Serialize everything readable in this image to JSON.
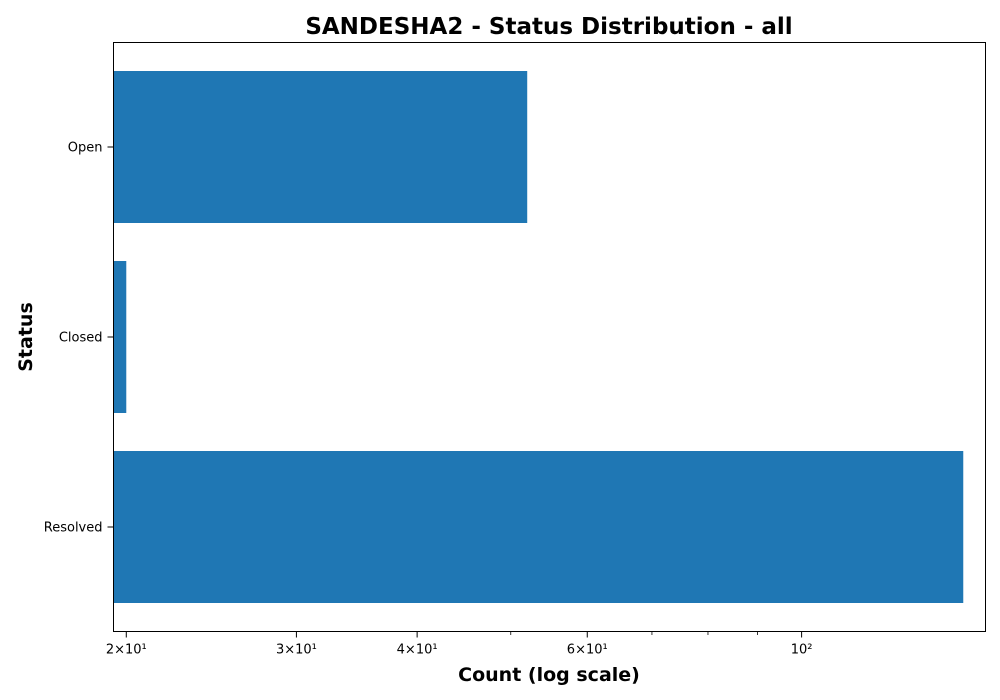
{
  "chart_data": {
    "type": "bar",
    "orientation": "horizontal",
    "title": "SANDESHA2 - Status Distribution - all",
    "xlabel": "Count (log scale)",
    "ylabel": "Status",
    "x_scale": "log",
    "xlim": [
      19.4,
      155
    ],
    "categories": [
      "Open",
      "Closed",
      "Resolved"
    ],
    "values": [
      52,
      20,
      147
    ],
    "bar_color": "#1f77b4",
    "x_major_ticks": [
      {
        "value": 20,
        "label": "2×10¹"
      },
      {
        "value": 30,
        "label": "3×10¹"
      },
      {
        "value": 40,
        "label": "4×10¹"
      },
      {
        "value": 60,
        "label": "6×10¹"
      },
      {
        "value": 100,
        "label": "10²"
      }
    ],
    "x_minor_ticks": [
      50,
      70,
      80,
      90
    ],
    "grid": false,
    "legend": "none"
  }
}
